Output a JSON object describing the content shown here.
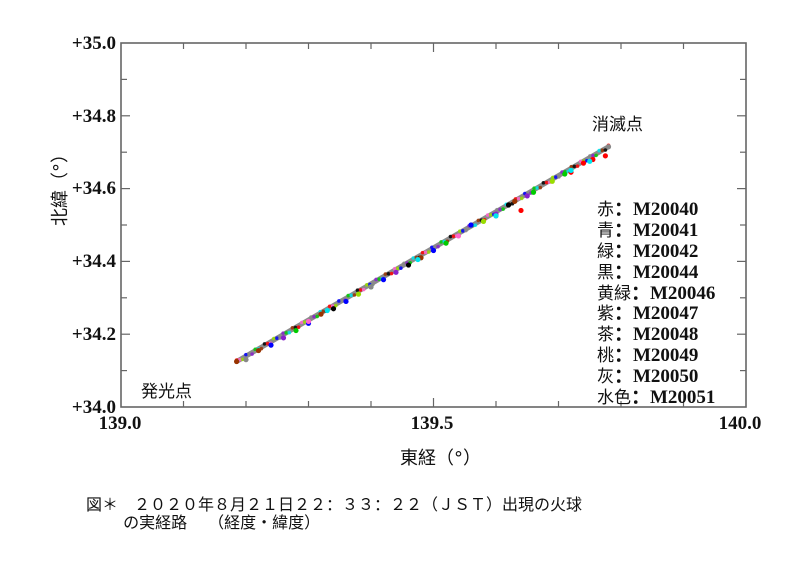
{
  "chart_data": {
    "type": "scatter",
    "title": "",
    "xlabel": "東経（°）",
    "ylabel": "北緯（°）",
    "xlim": [
      139.0,
      140.0
    ],
    "ylim": [
      34.0,
      35.0
    ],
    "x_ticks": [
      "139.0",
      "139.5",
      "140.0"
    ],
    "y_ticks": [
      "+34.0",
      "+34.2",
      "+34.4",
      "+34.6",
      "+34.8",
      "+35.0"
    ],
    "x_minor_step": 0.1,
    "y_minor_step": 0.1,
    "grid": false,
    "legend_position": "right-inside",
    "annotations": [
      {
        "text": "発光点",
        "x": 139.03,
        "y": 34.06
      },
      {
        "text": "消滅点",
        "x": 139.75,
        "y": 34.79
      }
    ],
    "series": [
      {
        "name": "赤：M20040",
        "color": "#ff0000",
        "points": [
          [
            139.64,
            34.54
          ],
          [
            139.72,
            34.645
          ],
          [
            139.74,
            34.67
          ],
          [
            139.755,
            34.68
          ],
          [
            139.775,
            34.69
          ]
        ]
      },
      {
        "name": "青：M20041",
        "color": "#0000ff",
        "points": [
          [
            139.24,
            34.17
          ],
          [
            139.3,
            34.23
          ],
          [
            139.36,
            34.29
          ],
          [
            139.42,
            34.35
          ],
          [
            139.5,
            34.43
          ],
          [
            139.56,
            34.5
          ]
        ]
      },
      {
        "name": "緑：M20042",
        "color": "#00cc00",
        "points": [
          [
            139.28,
            34.21
          ],
          [
            139.4,
            34.33
          ],
          [
            139.52,
            34.45
          ],
          [
            139.66,
            34.59
          ],
          [
            139.71,
            34.64
          ]
        ]
      },
      {
        "name": "黒：M20044",
        "color": "#000000",
        "points": [
          [
            139.34,
            34.27
          ],
          [
            139.46,
            34.39
          ],
          [
            139.62,
            34.555
          ]
        ]
      },
      {
        "name": "黄緑：M20046",
        "color": "#99dd00",
        "points": [
          [
            139.38,
            34.31
          ],
          [
            139.58,
            34.51
          ],
          [
            139.69,
            34.62
          ]
        ]
      },
      {
        "name": "紫：M20047",
        "color": "#8822cc",
        "points": [
          [
            139.26,
            34.19
          ],
          [
            139.44,
            34.37
          ],
          [
            139.6,
            34.53
          ],
          [
            139.65,
            34.58
          ]
        ]
      },
      {
        "name": "茶：M20048",
        "color": "#993300",
        "points": [
          [
            139.185,
            34.125
          ],
          [
            139.22,
            34.155
          ],
          [
            139.32,
            34.255
          ],
          [
            139.48,
            34.41
          ],
          [
            139.63,
            34.565
          ]
        ]
      },
      {
        "name": "桃：M20049",
        "color": "#ff66cc",
        "points": [
          [
            139.3,
            34.235
          ],
          [
            139.54,
            34.47
          ]
        ]
      },
      {
        "name": "灰：M20050",
        "color": "#888888",
        "points": [
          [
            139.2,
            34.13
          ],
          [
            139.4,
            34.33
          ],
          [
            139.6,
            34.525
          ],
          [
            139.78,
            34.715
          ]
        ]
      },
      {
        "name": "水色：M20051",
        "color": "#00e5ee",
        "points": [
          [
            139.33,
            34.265
          ],
          [
            139.475,
            34.405
          ],
          [
            139.6,
            34.525
          ],
          [
            139.72,
            34.65
          ],
          [
            139.75,
            34.675
          ]
        ]
      }
    ],
    "trajectory": {
      "start": [
        139.185,
        34.125
      ],
      "end": [
        139.78,
        34.715
      ]
    }
  },
  "plot": {
    "y_labels": [
      "+35.0",
      "+34.8",
      "+34.6",
      "+34.4",
      "+34.2",
      "+34.0"
    ],
    "x_labels": [
      "139.0",
      "139.5",
      "140.0"
    ],
    "x_title": "東経（°）",
    "y_title": "北緯（°）",
    "start_label": "発光点",
    "end_label": "消滅点"
  },
  "legend": [
    {
      "jp": "赤",
      "code": "：M20040"
    },
    {
      "jp": "青",
      "code": "：M20041"
    },
    {
      "jp": "緑",
      "code": "：M20042"
    },
    {
      "jp": "黒",
      "code": "：M20044"
    },
    {
      "jp": "黄緑",
      "code": "：M20046"
    },
    {
      "jp": "紫",
      "code": "：M20047"
    },
    {
      "jp": "茶",
      "code": "：M20048"
    },
    {
      "jp": "桃",
      "code": "：M20049"
    },
    {
      "jp": "灰",
      "code": "：M20050"
    },
    {
      "jp": "水色",
      "code": "：M20051"
    }
  ],
  "caption": {
    "line1": "図＊　２０２０年８月２１日２２：３３：２２（ＪＳＴ）出現の火球",
    "line2": "　　 の実経路　 （経度・緯度）"
  },
  "colors": {
    "frame": "#666666",
    "track": "#8c8c8c"
  }
}
